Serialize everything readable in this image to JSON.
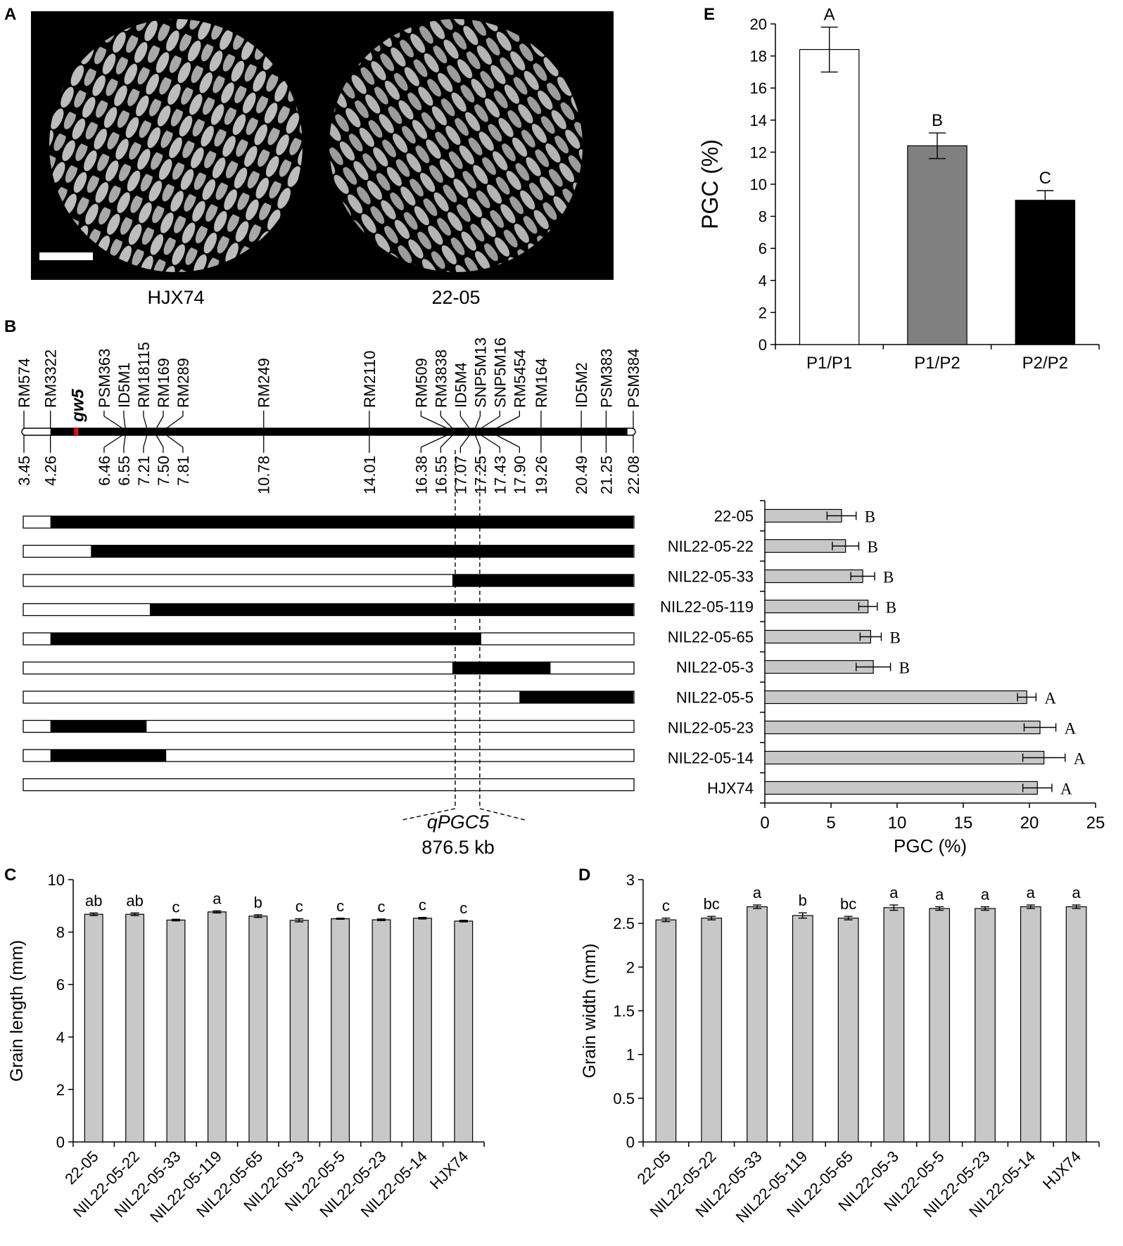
{
  "panels": {
    "A": "A",
    "B": "B",
    "C": "C",
    "D": "D",
    "E": "E"
  },
  "panel_a": {
    "left_label": "HJX74",
    "right_label": "22-05",
    "scale_bar": "white bar",
    "background": "#000000"
  },
  "panel_b": {
    "markers": [
      {
        "name": "RM574",
        "pos": "3.45"
      },
      {
        "name": "RM3322",
        "pos": "4.26"
      },
      {
        "name": "PSM363",
        "pos": "6.46"
      },
      {
        "name": "ID5M1",
        "pos": "6.55"
      },
      {
        "name": "RM18115",
        "pos": "7.21"
      },
      {
        "name": "RM169",
        "pos": "7.50"
      },
      {
        "name": "RM289",
        "pos": "7.81"
      },
      {
        "name": "RM249",
        "pos": "10.78"
      },
      {
        "name": "RM2110",
        "pos": "14.01"
      },
      {
        "name": "RM509",
        "pos": "16.38"
      },
      {
        "name": "RM3838",
        "pos": "16.55"
      },
      {
        "name": "ID5M4",
        "pos": "17.07"
      },
      {
        "name": "SNP5M13",
        "pos": "17.25"
      },
      {
        "name": "SNP5M16",
        "pos": "17.43"
      },
      {
        "name": "RM5454",
        "pos": "17.90"
      },
      {
        "name": "RM164",
        "pos": "19.26"
      },
      {
        "name": "ID5M2",
        "pos": "20.49"
      },
      {
        "name": "PSM383",
        "pos": "21.25"
      },
      {
        "name": "PSM384",
        "pos": "22.08"
      }
    ],
    "gene_label": "gw5",
    "gene_color": "#e01010",
    "qtl_label": "qPGC5",
    "qtl_size": "876.5 kb",
    "chart_xlabel": "PGC (%)"
  },
  "chart_data": [
    {
      "id": "E",
      "type": "bar",
      "categories": [
        "P1/P1",
        "P1/P2",
        "P2/P2"
      ],
      "values": [
        18.4,
        12.4,
        9.0
      ],
      "errors": [
        1.4,
        0.8,
        0.6
      ],
      "letters": [
        "A",
        "B",
        "C"
      ],
      "colors": [
        "#ffffff",
        "#808080",
        "#000000"
      ],
      "ylabel": "PGC (%)",
      "ylim": [
        0,
        20
      ],
      "yticks": [
        0,
        2,
        4,
        6,
        8,
        10,
        12,
        14,
        16,
        18,
        20
      ]
    },
    {
      "id": "B",
      "type": "bar",
      "orientation": "horizontal",
      "categories": [
        "22-05",
        "NIL22-05-22",
        "NIL22-05-33",
        "NIL22-05-119",
        "NIL22-05-65",
        "NIL22-05-3",
        "NIL22-05-5",
        "NIL22-05-23",
        "NIL22-05-14",
        "HJX74"
      ],
      "values": [
        5.8,
        6.1,
        7.4,
        7.8,
        8.0,
        8.2,
        19.8,
        20.8,
        21.1,
        20.6
      ],
      "errors": [
        1.1,
        1.0,
        0.9,
        0.7,
        0.8,
        1.3,
        0.7,
        1.2,
        1.6,
        1.1
      ],
      "letters": [
        "B",
        "B",
        "B",
        "B",
        "B",
        "B",
        "A",
        "A",
        "A",
        "A"
      ],
      "xlabel": "PGC (%)",
      "xlim": [
        0,
        25
      ],
      "xticks": [
        0,
        5,
        10,
        15,
        20,
        25
      ],
      "bar_color": "#c8c8c8"
    },
    {
      "id": "C",
      "type": "bar",
      "categories": [
        "22-05",
        "NIL22-05-22",
        "NIL22-05-33",
        "NIL22-05-119",
        "NIL22-05-65",
        "NIL22-05-3",
        "NIL22-05-5",
        "NIL22-05-23",
        "NIL22-05-14",
        "HJX74"
      ],
      "values": [
        8.68,
        8.68,
        8.46,
        8.77,
        8.61,
        8.45,
        8.51,
        8.47,
        8.53,
        8.42
      ],
      "errors": [
        0.05,
        0.05,
        0.03,
        0.04,
        0.05,
        0.06,
        0.02,
        0.03,
        0.03,
        0.03
      ],
      "letters": [
        "ab",
        "ab",
        "c",
        "a",
        "b",
        "c",
        "c",
        "c",
        "c",
        "c"
      ],
      "ylabel": "Grain length (mm)",
      "ylim": [
        0,
        10
      ],
      "yticks": [
        0,
        2,
        4,
        6,
        8,
        10
      ],
      "bar_color": "#c8c8c8"
    },
    {
      "id": "D",
      "type": "bar",
      "categories": [
        "22-05",
        "NIL22-05-22",
        "NIL22-05-33",
        "NIL22-05-119",
        "NIL22-05-65",
        "NIL22-05-3",
        "NIL22-05-5",
        "NIL22-05-23",
        "NIL22-05-14",
        "HJX74"
      ],
      "values": [
        2.54,
        2.56,
        2.69,
        2.59,
        2.56,
        2.68,
        2.67,
        2.67,
        2.69,
        2.69
      ],
      "errors": [
        0.02,
        0.02,
        0.02,
        0.03,
        0.02,
        0.03,
        0.02,
        0.02,
        0.02,
        0.02
      ],
      "letters": [
        "c",
        "bc",
        "a",
        "b",
        "bc",
        "a",
        "a",
        "a",
        "a",
        "a"
      ],
      "ylabel": "Grain width (mm)",
      "ylim": [
        0,
        3
      ],
      "yticks": [
        "0",
        "0.5",
        "1",
        "1.5",
        "2",
        "2.5",
        "3"
      ],
      "bar_color": "#c8c8c8"
    }
  ],
  "nil_segments": [
    {
      "name": "22-05",
      "segments": [
        [
          4.26,
          22.08
        ]
      ]
    },
    {
      "name": "NIL22-05-22",
      "segments": [
        [
          5.5,
          22.08
        ]
      ]
    },
    {
      "name": "NIL22-05-33",
      "segments": [
        [
          16.55,
          22.08
        ]
      ]
    },
    {
      "name": "NIL22-05-119",
      "segments": [
        [
          7.3,
          22.08
        ]
      ]
    },
    {
      "name": "NIL22-05-65",
      "segments": [
        [
          4.26,
          17.43
        ]
      ]
    },
    {
      "name": "NIL22-05-3",
      "segments": [
        [
          16.55,
          19.55
        ]
      ]
    },
    {
      "name": "NIL22-05-5",
      "segments": [
        [
          18.6,
          22.08
        ]
      ]
    },
    {
      "name": "NIL22-05-23",
      "segments": [
        [
          4.26,
          7.2
        ]
      ]
    },
    {
      "name": "NIL22-05-14",
      "segments": [
        [
          4.26,
          7.8
        ]
      ]
    },
    {
      "name": "HJX74",
      "segments": []
    }
  ]
}
